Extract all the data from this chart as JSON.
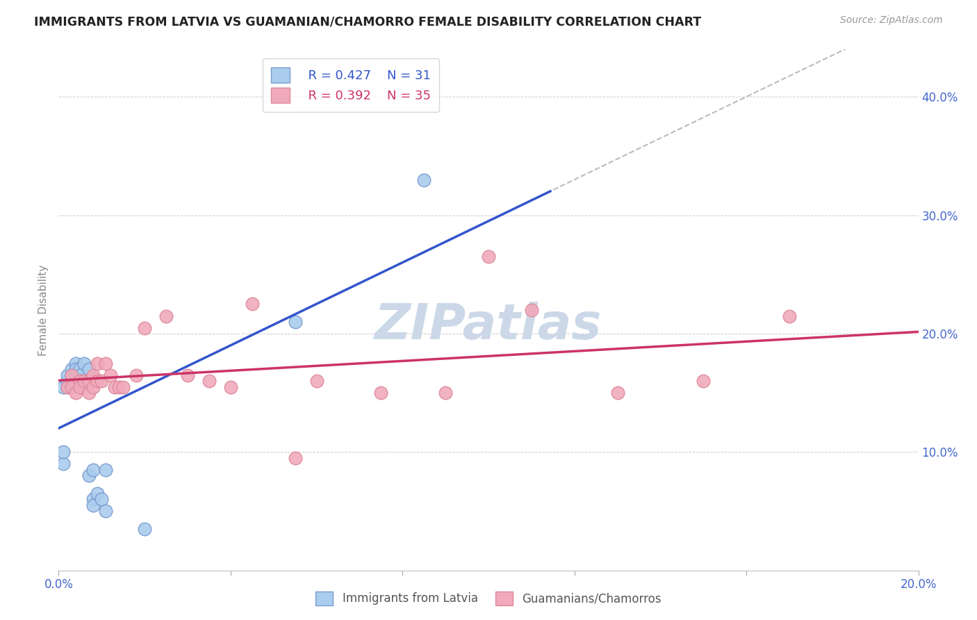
{
  "title": "IMMIGRANTS FROM LATVIA VS GUAMANIAN/CHAMORRO FEMALE DISABILITY CORRELATION CHART",
  "source": "Source: ZipAtlas.com",
  "ylabel": "Female Disability",
  "xmin": 0.0,
  "xmax": 0.2,
  "ymin": 0.0,
  "ymax": 0.44,
  "y_ticks_right": [
    0.1,
    0.2,
    0.3,
    0.4
  ],
  "y_tick_labels_right": [
    "10.0%",
    "20.0%",
    "30.0%",
    "40.0%"
  ],
  "r_blue": 0.427,
  "n_blue": 31,
  "r_pink": 0.392,
  "n_pink": 35,
  "blue_scatter_x": [
    0.001,
    0.001,
    0.001,
    0.002,
    0.002,
    0.002,
    0.003,
    0.003,
    0.003,
    0.003,
    0.004,
    0.004,
    0.004,
    0.005,
    0.005,
    0.005,
    0.005,
    0.006,
    0.006,
    0.007,
    0.007,
    0.008,
    0.008,
    0.008,
    0.009,
    0.01,
    0.011,
    0.011,
    0.02,
    0.055,
    0.085
  ],
  "blue_scatter_y": [
    0.09,
    0.1,
    0.155,
    0.155,
    0.16,
    0.165,
    0.17,
    0.165,
    0.16,
    0.155,
    0.175,
    0.17,
    0.165,
    0.17,
    0.165,
    0.16,
    0.155,
    0.175,
    0.16,
    0.08,
    0.17,
    0.085,
    0.06,
    0.055,
    0.065,
    0.06,
    0.05,
    0.085,
    0.035,
    0.21,
    0.33
  ],
  "pink_scatter_x": [
    0.002,
    0.003,
    0.003,
    0.004,
    0.005,
    0.005,
    0.006,
    0.007,
    0.007,
    0.008,
    0.008,
    0.009,
    0.009,
    0.01,
    0.011,
    0.012,
    0.013,
    0.014,
    0.015,
    0.018,
    0.02,
    0.025,
    0.03,
    0.035,
    0.04,
    0.045,
    0.055,
    0.06,
    0.075,
    0.09,
    0.1,
    0.11,
    0.13,
    0.15,
    0.17
  ],
  "pink_scatter_y": [
    0.155,
    0.165,
    0.155,
    0.15,
    0.16,
    0.155,
    0.16,
    0.16,
    0.15,
    0.165,
    0.155,
    0.175,
    0.16,
    0.16,
    0.175,
    0.165,
    0.155,
    0.155,
    0.155,
    0.165,
    0.205,
    0.215,
    0.165,
    0.16,
    0.155,
    0.225,
    0.095,
    0.16,
    0.15,
    0.15,
    0.265,
    0.22,
    0.15,
    0.16,
    0.215
  ],
  "blue_line_color": "#3355cc",
  "pink_line_color": "#cc3366",
  "blue_dot_facecolor": "#aaccee",
  "pink_dot_facecolor": "#f0aabb",
  "blue_dot_edgecolor": "#7799cc",
  "pink_dot_edgecolor": "#dd8899",
  "dashed_line_color": "#bbbbbb",
  "background_color": "#ffffff",
  "grid_color": "#cccccc",
  "title_color": "#222222",
  "axis_tick_color": "#4466cc",
  "watermark_color": "#ccd8e8",
  "legend_entries": [
    "Immigrants from Latvia",
    "Guamanians/Chamorros"
  ]
}
